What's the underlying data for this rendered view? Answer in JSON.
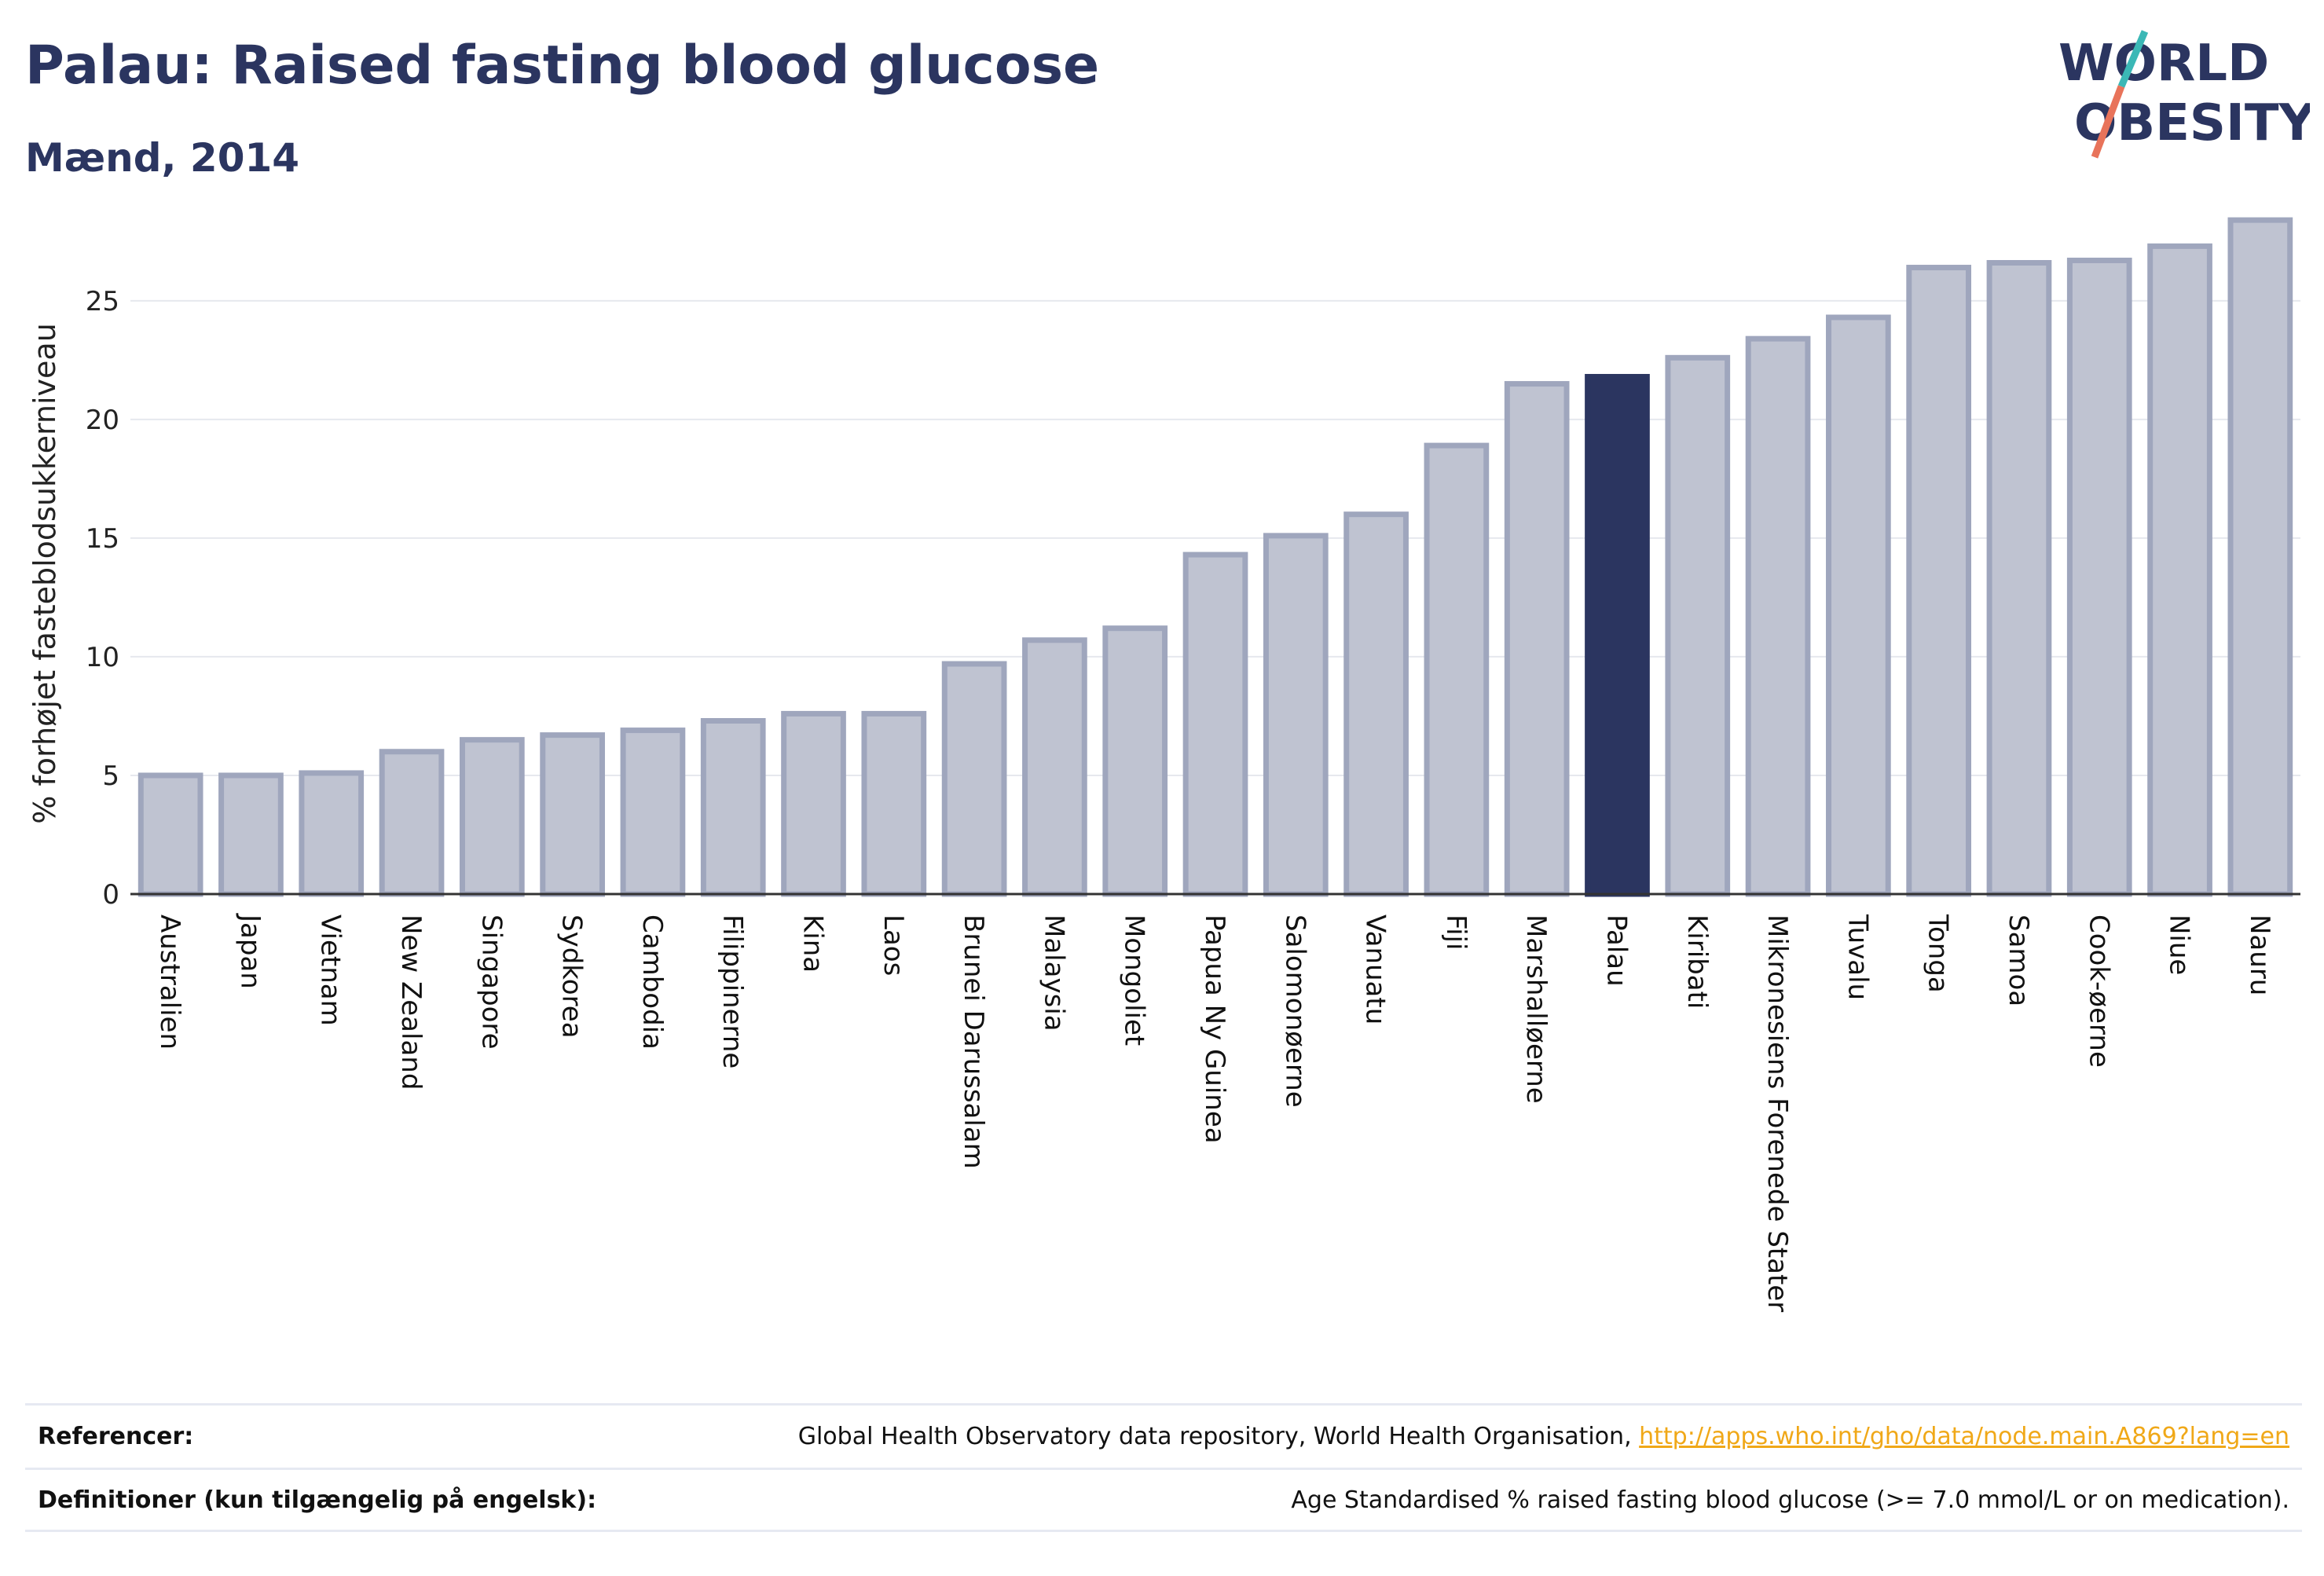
{
  "header": {
    "title": "Palau: Raised fasting blood glucose",
    "subtitle": "Mænd, 2014"
  },
  "logo": {
    "line1": "WORLD",
    "line2": "OBESITY"
  },
  "colors": {
    "highlight": "#2b3560",
    "bar_fill": "#bfc3d1",
    "bar_stroke": "#9fa6bd",
    "logo_slash_teal": "#3bb8b6",
    "logo_slash_red": "#e8735a",
    "link": "#f0a818"
  },
  "chart_data": {
    "type": "bar",
    "title": "Palau: Raised fasting blood glucose",
    "subtitle": "Mænd, 2014",
    "ylabel": "% forhøjet fasteblodsukkerniveau",
    "xlabel": "",
    "ylim": [
      0,
      29
    ],
    "yticks": [
      0,
      5,
      10,
      15,
      20,
      25
    ],
    "grid": true,
    "highlight": "Palau",
    "categories": [
      "Australien",
      "Japan",
      "Vietnam",
      "New Zealand",
      "Singapore",
      "Sydkorea",
      "Cambodia",
      "Filippinerne",
      "Kina",
      "Laos",
      "Brunei Darussalam",
      "Malaysia",
      "Mongoliet",
      "Papua Ny Guinea",
      "Salomonøerne",
      "Vanuatu",
      "Fiji",
      "Marshalløerne",
      "Palau",
      "Kiribati",
      "Mikronesiens Forenede Stater",
      "Tuvalu",
      "Tonga",
      "Samoa",
      "Cook-øerne",
      "Niue",
      "Nauru"
    ],
    "values": [
      5.0,
      5.0,
      5.1,
      6.0,
      6.5,
      6.7,
      6.9,
      7.3,
      7.6,
      7.6,
      9.7,
      10.7,
      11.2,
      14.3,
      15.1,
      16.0,
      18.9,
      21.5,
      21.8,
      22.6,
      23.4,
      24.3,
      26.4,
      26.6,
      26.7,
      27.3,
      28.4
    ]
  },
  "footer": {
    "references_label": "Referencer:",
    "references_text": "Global Health Observatory data repository, World Health Organisation, ",
    "references_link": "http://apps.who.int/gho/data/node.main.A869?lang=en",
    "definitions_label": "Definitioner (kun tilgængelig på engelsk):",
    "definitions_text": "Age Standardised % raised fasting blood glucose (>= 7.0 mmol/L or on medication)."
  }
}
